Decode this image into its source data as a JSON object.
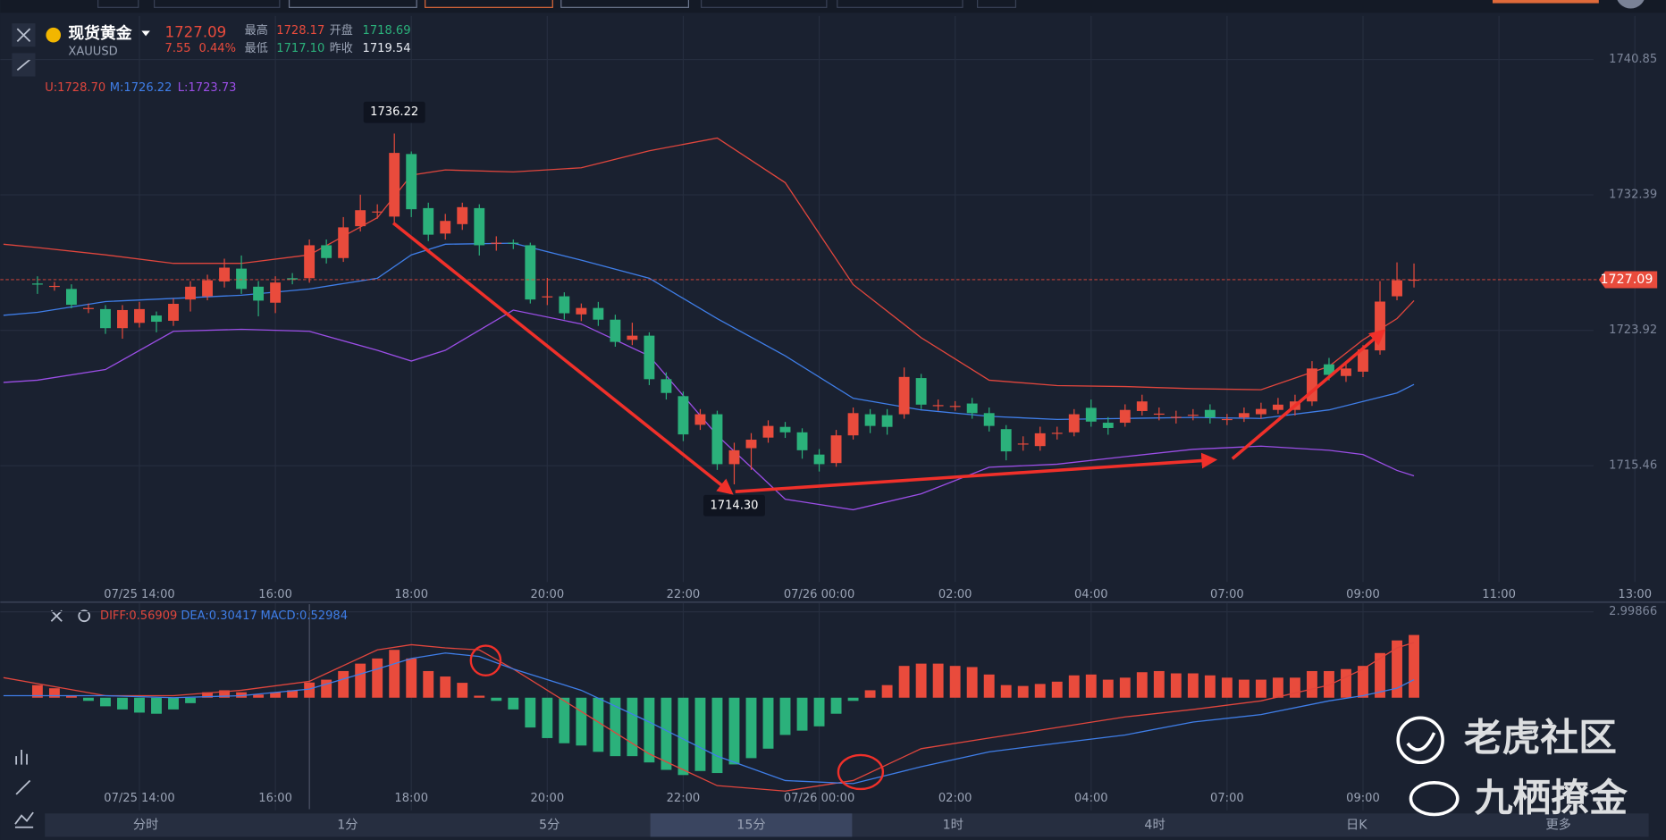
{
  "header": {
    "name": "现货黄金",
    "code": "XAUUSD",
    "price": "1727.09",
    "change": "7.55",
    "change_pct": "0.44%",
    "high_label": "最高",
    "high": "1728.17",
    "open_label": "开盘",
    "open": "1718.69",
    "low_label": "最低",
    "low": "1717.10",
    "prev_label": "昨收",
    "prev": "1719.54"
  },
  "chart_data": [
    {
      "type": "candlestick",
      "grid": true,
      "up_color": "#e94b3c",
      "down_color": "#2bb17b",
      "xlim": [
        -2.1875,
        95.8125
      ],
      "ylim": [
        1708.2,
        1743.57
      ],
      "yticks": [
        1740.85,
        1732.39,
        1723.92,
        1715.46
      ],
      "xticks": [
        {
          "value": 6,
          "label": "07/25 14:00"
        },
        {
          "value": 14,
          "label": "16:00"
        },
        {
          "value": 22,
          "label": "18:00"
        },
        {
          "value": 30,
          "label": "20:00"
        },
        {
          "value": 38,
          "label": "22:00"
        },
        {
          "value": 46,
          "label": "07/26 00:00"
        },
        {
          "value": 54,
          "label": "02:00"
        },
        {
          "value": 62,
          "label": "04:00"
        },
        {
          "value": 70,
          "label": "07:00"
        },
        {
          "value": 78,
          "label": "09:00"
        },
        {
          "value": 86,
          "label": "11:00"
        },
        {
          "value": 94,
          "label": "13:00"
        }
      ],
      "open": [
        1726.85,
        1726.65,
        1726.51,
        1725.25,
        1725.25,
        1724.06,
        1724.39,
        1724.85,
        1724.52,
        1725.85,
        1726.05,
        1726.98,
        1727.78,
        1726.65,
        1725.65,
        1727.18,
        1727.18,
        1729.24,
        1728.44,
        1730.43,
        1731.29,
        1731.03,
        1734.94,
        1731.56,
        1729.97,
        1730.56,
        1731.56,
        1729.37,
        1729.4,
        1729.24,
        1725.98,
        1726.05,
        1724.92,
        1725.32,
        1724.59,
        1723.33,
        1723.59,
        1720.87,
        1719.81,
        1718.02,
        1718.68,
        1715.56,
        1716.56,
        1717.22,
        1717.89,
        1717.55,
        1716.16,
        1715.63,
        1717.36,
        1718.68,
        1718.62,
        1718.68,
        1720.94,
        1719.21,
        1719.15,
        1719.35,
        1718.75,
        1717.75,
        1716.82,
        1716.69,
        1717.49,
        1717.55,
        1719.08,
        1718.15,
        1718.15,
        1718.88,
        1718.68,
        1718.48,
        1718.62,
        1718.95,
        1718.35,
        1718.48,
        1718.68,
        1718.95,
        1718.95,
        1719.48,
        1721.8,
        1721.07,
        1721.34,
        1722.67,
        1726.05,
        1727.05
      ],
      "high": [
        1727.3,
        1726.95,
        1726.8,
        1725.6,
        1725.5,
        1725.5,
        1725.7,
        1725.1,
        1725.9,
        1727.0,
        1727.4,
        1728.4,
        1728.6,
        1727.0,
        1727.3,
        1727.5,
        1729.6,
        1729.6,
        1731.0,
        1732.4,
        1731.8,
        1736.22,
        1735.1,
        1731.9,
        1731.2,
        1731.9,
        1731.8,
        1729.8,
        1729.6,
        1729.4,
        1727.2,
        1726.3,
        1725.6,
        1725.7,
        1724.9,
        1724.4,
        1723.8,
        1721.3,
        1720.1,
        1719.0,
        1718.9,
        1716.9,
        1717.5,
        1718.3,
        1718.2,
        1717.8,
        1716.5,
        1717.7,
        1719.1,
        1719.0,
        1719.0,
        1721.6,
        1721.2,
        1719.6,
        1719.5,
        1719.7,
        1719.1,
        1718.0,
        1717.3,
        1717.9,
        1717.9,
        1719.0,
        1719.6,
        1718.5,
        1719.3,
        1719.9,
        1719.1,
        1718.9,
        1719.0,
        1719.3,
        1718.7,
        1719.1,
        1719.4,
        1719.7,
        1719.9,
        1722.0,
        1722.2,
        1722.0,
        1723.0,
        1727.0,
        1728.17,
        1728.1
      ],
      "low": [
        1726.2,
        1726.4,
        1725.3,
        1725.0,
        1723.7,
        1723.4,
        1724.1,
        1723.8,
        1724.2,
        1725.1,
        1725.8,
        1726.6,
        1726.2,
        1724.8,
        1725.0,
        1726.8,
        1726.9,
        1728.1,
        1728.2,
        1730.1,
        1730.9,
        1730.6,
        1731.0,
        1729.5,
        1729.6,
        1730.2,
        1728.6,
        1728.9,
        1729.0,
        1725.6,
        1725.5,
        1724.6,
        1724.5,
        1724.2,
        1722.9,
        1723.0,
        1720.5,
        1719.6,
        1717.0,
        1717.7,
        1715.2,
        1714.3,
        1715.2,
        1716.9,
        1717.2,
        1715.9,
        1715.1,
        1715.4,
        1717.1,
        1717.5,
        1717.4,
        1718.4,
        1719.0,
        1718.9,
        1718.9,
        1718.4,
        1717.6,
        1715.8,
        1716.4,
        1716.4,
        1717.1,
        1717.3,
        1717.9,
        1717.4,
        1717.9,
        1718.6,
        1718.3,
        1718.1,
        1718.3,
        1718.1,
        1718.0,
        1718.2,
        1718.4,
        1718.7,
        1718.6,
        1719.2,
        1720.8,
        1720.7,
        1721.0,
        1722.4,
        1725.8,
        1726.6
      ],
      "close": [
        1726.78,
        1726.7,
        1725.52,
        1725.32,
        1724.06,
        1725.19,
        1725.25,
        1724.46,
        1725.58,
        1726.65,
        1727.05,
        1727.84,
        1726.51,
        1725.78,
        1726.91,
        1727.1,
        1729.24,
        1728.44,
        1730.36,
        1731.43,
        1731.35,
        1735.01,
        1731.49,
        1729.9,
        1730.76,
        1731.62,
        1729.24,
        1729.4,
        1729.37,
        1725.85,
        1726.05,
        1724.99,
        1725.32,
        1724.59,
        1723.2,
        1723.59,
        1720.87,
        1720.01,
        1717.42,
        1718.68,
        1715.56,
        1716.43,
        1717.09,
        1717.95,
        1717.55,
        1716.43,
        1715.56,
        1717.36,
        1718.75,
        1717.95,
        1717.89,
        1721.01,
        1719.28,
        1719.25,
        1719.2,
        1718.75,
        1717.95,
        1716.36,
        1716.85,
        1717.49,
        1717.52,
        1718.68,
        1718.22,
        1717.82,
        1718.95,
        1719.48,
        1718.72,
        1718.52,
        1718.65,
        1718.48,
        1718.38,
        1718.75,
        1719.01,
        1719.28,
        1719.48,
        1721.54,
        1721.14,
        1721.54,
        1722.73,
        1725.72,
        1727.05,
        1727.09
      ],
      "series": [
        {
          "name": "U:1728.70",
          "color": "#e0463d",
          "x": [
            -2,
            0,
            4,
            8,
            12,
            16,
            20,
            22,
            24,
            28,
            32,
            36,
            40,
            44,
            48,
            52,
            56,
            60,
            64,
            68,
            72,
            76,
            78,
            80,
            81
          ],
          "values": [
            1729.3,
            1729.1,
            1728.64,
            1728.11,
            1728.11,
            1728.64,
            1730.96,
            1733.62,
            1733.95,
            1733.82,
            1734.08,
            1735.14,
            1735.94,
            1733.15,
            1726.78,
            1723.46,
            1720.81,
            1720.47,
            1720.41,
            1720.28,
            1720.21,
            1721.67,
            1723.33,
            1724.66,
            1725.78
          ]
        },
        {
          "name": "M:1726.22",
          "color": "#3f7ee8",
          "x": [
            -2,
            0,
            4,
            8,
            12,
            16,
            20,
            22,
            24,
            28,
            32,
            36,
            40,
            44,
            48,
            52,
            56,
            60,
            64,
            68,
            72,
            76,
            78,
            80,
            81
          ],
          "values": [
            1724.86,
            1725.05,
            1725.72,
            1725.92,
            1726.12,
            1726.51,
            1727.18,
            1728.64,
            1729.3,
            1729.37,
            1728.31,
            1727.18,
            1724.66,
            1722.33,
            1719.68,
            1718.95,
            1718.55,
            1718.35,
            1718.42,
            1718.48,
            1718.42,
            1718.95,
            1719.48,
            1720.01,
            1720.54
          ]
        },
        {
          "name": "L:1723.73",
          "color": "#9b4ee6",
          "x": [
            -2,
            0,
            4,
            8,
            12,
            16,
            20,
            22,
            24,
            28,
            32,
            36,
            40,
            44,
            48,
            52,
            56,
            60,
            64,
            68,
            72,
            76,
            78,
            80,
            81
          ],
          "values": [
            1720.67,
            1720.81,
            1721.47,
            1723.86,
            1723.99,
            1723.86,
            1722.67,
            1722.0,
            1722.67,
            1725.19,
            1724.32,
            1722.33,
            1717.36,
            1713.37,
            1712.71,
            1713.71,
            1715.37,
            1715.56,
            1716.03,
            1716.49,
            1716.69,
            1716.43,
            1716.16,
            1715.17,
            1714.83
          ]
        }
      ],
      "high_marker": 1736.22,
      "low_marker": {
        "value": 1714.3,
        "label": "1714.30"
      },
      "last_price": 1727.09
    },
    {
      "type": "macd",
      "grid": true,
      "up_color": "#e94b3c",
      "down_color": "#2bb17b",
      "xlim": [
        -2.1875,
        95.8125
      ],
      "ylim": [
        -3.93,
        3.3
      ],
      "yticks": [
        2.99866
      ],
      "xticks": [
        {
          "value": 6,
          "label": "07/25 14:00"
        },
        {
          "value": 14,
          "label": "16:00"
        },
        {
          "value": 22,
          "label": "18:00"
        },
        {
          "value": 30,
          "label": "20:00"
        },
        {
          "value": 38,
          "label": "22:00"
        },
        {
          "value": 46,
          "label": "07/26 00:00"
        },
        {
          "value": 54,
          "label": "02:00"
        },
        {
          "value": 62,
          "label": "04:00"
        },
        {
          "value": 70,
          "label": "07:00"
        },
        {
          "value": 78,
          "label": "09:00"
        }
      ],
      "histogram_name": "MACD:0.52984",
      "values": [
        0.44,
        0.33,
        0.07,
        -0.11,
        -0.3,
        -0.41,
        -0.52,
        -0.56,
        -0.41,
        -0.19,
        0.19,
        0.26,
        0.19,
        0.11,
        0.19,
        0.26,
        0.53,
        0.63,
        0.93,
        1.19,
        1.37,
        1.67,
        1.37,
        0.93,
        0.74,
        0.52,
        0.07,
        -0.11,
        -0.41,
        -1.04,
        -1.41,
        -1.59,
        -1.67,
        -1.89,
        -2.04,
        -2.04,
        -2.26,
        -2.52,
        -2.7,
        -2.56,
        -2.63,
        -2.33,
        -2.11,
        -1.78,
        -1.3,
        -1.15,
        -1.0,
        -0.56,
        -0.11,
        0.26,
        0.44,
        1.11,
        1.19,
        1.19,
        1.11,
        1.07,
        0.81,
        0.44,
        0.41,
        0.48,
        0.56,
        0.78,
        0.81,
        0.63,
        0.7,
        0.89,
        0.93,
        0.85,
        0.85,
        0.78,
        0.7,
        0.63,
        0.63,
        0.7,
        0.7,
        0.93,
        0.93,
        1.0,
        1.11,
        1.56,
        2.0,
        2.19
      ],
      "series": [
        {
          "name": "DIFF:0.56909",
          "color": "#e0463d",
          "x": [
            -2,
            4,
            8,
            12,
            16,
            20,
            22,
            24,
            26,
            28,
            32,
            36,
            40,
            44,
            48,
            52,
            56,
            60,
            64,
            68,
            72,
            76,
            78,
            80,
            81
          ],
          "values": [
            0.7,
            0.07,
            0.07,
            0.26,
            0.57,
            1.67,
            1.85,
            1.74,
            1.67,
            1.0,
            -0.48,
            -1.96,
            -3.07,
            -3.26,
            -2.89,
            -1.78,
            -1.41,
            -1.04,
            -0.67,
            -0.41,
            -0.11,
            0.44,
            1.0,
            1.74,
            1.93
          ]
        },
        {
          "name": "DEA:0.30417",
          "color": "#3f7ee8",
          "x": [
            -2,
            4,
            8,
            12,
            16,
            20,
            22,
            24,
            26,
            28,
            32,
            36,
            40,
            44,
            48,
            52,
            56,
            60,
            64,
            68,
            72,
            76,
            78,
            80,
            81
          ],
          "values": [
            0.07,
            0.07,
            0,
            0.07,
            0.3,
            1.0,
            1.37,
            1.56,
            1.44,
            1.0,
            0.26,
            -0.85,
            -2.04,
            -2.89,
            -3.0,
            -2.41,
            -1.89,
            -1.59,
            -1.3,
            -0.85,
            -0.59,
            -0.11,
            0.07,
            0.33,
            0.63
          ]
        }
      ]
    }
  ],
  "tabs": [
    "分时",
    "1分",
    "5分",
    "15分",
    "1时",
    "4时",
    "日K",
    "更多"
  ],
  "watermarks": [
    "老虎社区",
    "九栖撩金"
  ]
}
